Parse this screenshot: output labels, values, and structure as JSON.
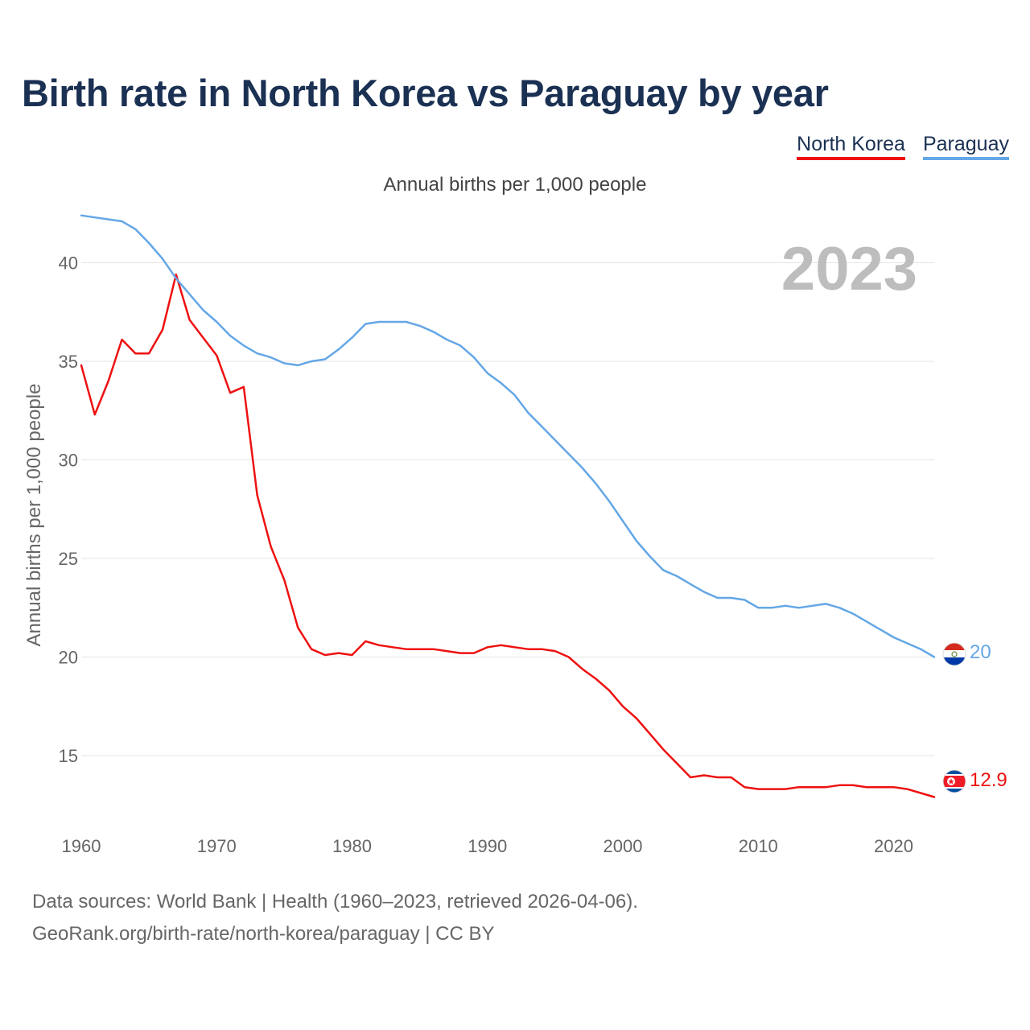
{
  "title": "Birth rate in North Korea vs Paraguay by year",
  "subtitle": "Annual births per 1,000 people",
  "legend": [
    {
      "label": "North Korea",
      "color": "#ee1111"
    },
    {
      "label": "Paraguay",
      "color": "#64a7e6"
    }
  ],
  "year_label": "2023",
  "source_line1": "Data sources: World Bank | Health (1960–2023, retrieved 2026-04-06).",
  "source_line2": "GeoRank.org/birth-rate/north-korea/paraguay | CC BY",
  "colors": {
    "north_korea": "#ee1111",
    "paraguay": "#64a7e6",
    "title": "#1b3153",
    "grid": "#e6e6e6",
    "axis_text": "#666666"
  },
  "chart_data": {
    "type": "line",
    "title": "Birth rate in North Korea vs Paraguay by year",
    "ylabel": "Annual births per 1,000 people",
    "xlabel": "",
    "xlim": [
      1960,
      2023
    ],
    "ylim": [
      11,
      43
    ],
    "x_ticks": [
      1960,
      1970,
      1980,
      1990,
      2000,
      2010,
      2020
    ],
    "y_ticks": [
      15,
      20,
      25,
      30,
      35,
      40
    ],
    "grid": true,
    "series": [
      {
        "name": "North Korea",
        "color": "#ee1111",
        "end_label": "12.9",
        "flag_icon": "north-korea-flag-icon",
        "points": [
          [
            1960,
            34.8
          ],
          [
            1961,
            32.3
          ],
          [
            1962,
            34.0
          ],
          [
            1963,
            36.1
          ],
          [
            1964,
            35.4
          ],
          [
            1965,
            35.4
          ],
          [
            1966,
            36.6
          ],
          [
            1967,
            39.4
          ],
          [
            1968,
            37.1
          ],
          [
            1969,
            36.2
          ],
          [
            1970,
            35.3
          ],
          [
            1971,
            33.4
          ],
          [
            1972,
            33.7
          ],
          [
            1973,
            28.2
          ],
          [
            1974,
            25.6
          ],
          [
            1975,
            23.9
          ],
          [
            1976,
            21.5
          ],
          [
            1977,
            20.4
          ],
          [
            1978,
            20.1
          ],
          [
            1979,
            20.2
          ],
          [
            1980,
            20.1
          ],
          [
            1981,
            20.8
          ],
          [
            1982,
            20.6
          ],
          [
            1983,
            20.5
          ],
          [
            1984,
            20.4
          ],
          [
            1985,
            20.4
          ],
          [
            1986,
            20.4
          ],
          [
            1987,
            20.3
          ],
          [
            1988,
            20.2
          ],
          [
            1989,
            20.2
          ],
          [
            1990,
            20.5
          ],
          [
            1991,
            20.6
          ],
          [
            1992,
            20.5
          ],
          [
            1993,
            20.4
          ],
          [
            1994,
            20.4
          ],
          [
            1995,
            20.3
          ],
          [
            1996,
            20.0
          ],
          [
            1997,
            19.4
          ],
          [
            1998,
            18.9
          ],
          [
            1999,
            18.3
          ],
          [
            2000,
            17.5
          ],
          [
            2001,
            16.9
          ],
          [
            2002,
            16.1
          ],
          [
            2003,
            15.3
          ],
          [
            2004,
            14.6
          ],
          [
            2005,
            13.9
          ],
          [
            2006,
            14.0
          ],
          [
            2007,
            13.9
          ],
          [
            2008,
            13.9
          ],
          [
            2009,
            13.4
          ],
          [
            2010,
            13.3
          ],
          [
            2011,
            13.3
          ],
          [
            2012,
            13.3
          ],
          [
            2013,
            13.4
          ],
          [
            2014,
            13.4
          ],
          [
            2015,
            13.4
          ],
          [
            2016,
            13.5
          ],
          [
            2017,
            13.5
          ],
          [
            2018,
            13.4
          ],
          [
            2019,
            13.4
          ],
          [
            2020,
            13.4
          ],
          [
            2021,
            13.3
          ],
          [
            2022,
            13.1
          ],
          [
            2023,
            12.9
          ]
        ]
      },
      {
        "name": "Paraguay",
        "color": "#64a7e6",
        "end_label": "20",
        "flag_icon": "paraguay-flag-icon",
        "points": [
          [
            1960,
            42.4
          ],
          [
            1961,
            42.3
          ],
          [
            1962,
            42.2
          ],
          [
            1963,
            42.1
          ],
          [
            1964,
            41.7
          ],
          [
            1965,
            41.0
          ],
          [
            1966,
            40.2
          ],
          [
            1967,
            39.2
          ],
          [
            1968,
            38.4
          ],
          [
            1969,
            37.6
          ],
          [
            1970,
            37.0
          ],
          [
            1971,
            36.3
          ],
          [
            1972,
            35.8
          ],
          [
            1973,
            35.4
          ],
          [
            1974,
            35.2
          ],
          [
            1975,
            34.9
          ],
          [
            1976,
            34.8
          ],
          [
            1977,
            35.0
          ],
          [
            1978,
            35.1
          ],
          [
            1979,
            35.6
          ],
          [
            1980,
            36.2
          ],
          [
            1981,
            36.9
          ],
          [
            1982,
            37.0
          ],
          [
            1983,
            37.0
          ],
          [
            1984,
            37.0
          ],
          [
            1985,
            36.8
          ],
          [
            1986,
            36.5
          ],
          [
            1987,
            36.1
          ],
          [
            1988,
            35.8
          ],
          [
            1989,
            35.2
          ],
          [
            1990,
            34.4
          ],
          [
            1991,
            33.9
          ],
          [
            1992,
            33.3
          ],
          [
            1993,
            32.4
          ],
          [
            1994,
            31.7
          ],
          [
            1995,
            31.0
          ],
          [
            1996,
            30.3
          ],
          [
            1997,
            29.6
          ],
          [
            1998,
            28.8
          ],
          [
            1999,
            27.9
          ],
          [
            2000,
            26.9
          ],
          [
            2001,
            25.9
          ],
          [
            2002,
            25.1
          ],
          [
            2003,
            24.4
          ],
          [
            2004,
            24.1
          ],
          [
            2005,
            23.7
          ],
          [
            2006,
            23.3
          ],
          [
            2007,
            23.0
          ],
          [
            2008,
            23.0
          ],
          [
            2009,
            22.9
          ],
          [
            2010,
            22.5
          ],
          [
            2011,
            22.5
          ],
          [
            2012,
            22.6
          ],
          [
            2013,
            22.5
          ],
          [
            2014,
            22.6
          ],
          [
            2015,
            22.7
          ],
          [
            2016,
            22.5
          ],
          [
            2017,
            22.2
          ],
          [
            2018,
            21.8
          ],
          [
            2019,
            21.4
          ],
          [
            2020,
            21.0
          ],
          [
            2021,
            20.7
          ],
          [
            2022,
            20.4
          ],
          [
            2023,
            20.0
          ]
        ]
      }
    ]
  }
}
